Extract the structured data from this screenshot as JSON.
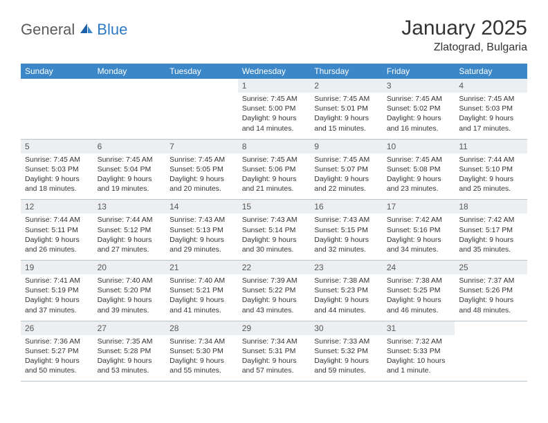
{
  "logo": {
    "text1": "General",
    "text2": "Blue"
  },
  "title": "January 2025",
  "location": "Zlatograd, Bulgaria",
  "colors": {
    "header_bg": "#3b87c8",
    "header_fg": "#ffffff",
    "daynum_bg": "#eceff1",
    "border": "#b8c4cc",
    "text": "#333333",
    "logo_gray": "#5a5a5a",
    "logo_blue": "#2d78c4"
  },
  "weekdays": [
    "Sunday",
    "Monday",
    "Tuesday",
    "Wednesday",
    "Thursday",
    "Friday",
    "Saturday"
  ],
  "weeks": [
    {
      "nums": [
        "",
        "",
        "",
        "1",
        "2",
        "3",
        "4"
      ],
      "details": [
        "",
        "",
        "",
        "Sunrise: 7:45 AM\nSunset: 5:00 PM\nDaylight: 9 hours and 14 minutes.",
        "Sunrise: 7:45 AM\nSunset: 5:01 PM\nDaylight: 9 hours and 15 minutes.",
        "Sunrise: 7:45 AM\nSunset: 5:02 PM\nDaylight: 9 hours and 16 minutes.",
        "Sunrise: 7:45 AM\nSunset: 5:03 PM\nDaylight: 9 hours and 17 minutes."
      ]
    },
    {
      "nums": [
        "5",
        "6",
        "7",
        "8",
        "9",
        "10",
        "11"
      ],
      "details": [
        "Sunrise: 7:45 AM\nSunset: 5:03 PM\nDaylight: 9 hours and 18 minutes.",
        "Sunrise: 7:45 AM\nSunset: 5:04 PM\nDaylight: 9 hours and 19 minutes.",
        "Sunrise: 7:45 AM\nSunset: 5:05 PM\nDaylight: 9 hours and 20 minutes.",
        "Sunrise: 7:45 AM\nSunset: 5:06 PM\nDaylight: 9 hours and 21 minutes.",
        "Sunrise: 7:45 AM\nSunset: 5:07 PM\nDaylight: 9 hours and 22 minutes.",
        "Sunrise: 7:45 AM\nSunset: 5:08 PM\nDaylight: 9 hours and 23 minutes.",
        "Sunrise: 7:44 AM\nSunset: 5:10 PM\nDaylight: 9 hours and 25 minutes."
      ]
    },
    {
      "nums": [
        "12",
        "13",
        "14",
        "15",
        "16",
        "17",
        "18"
      ],
      "details": [
        "Sunrise: 7:44 AM\nSunset: 5:11 PM\nDaylight: 9 hours and 26 minutes.",
        "Sunrise: 7:44 AM\nSunset: 5:12 PM\nDaylight: 9 hours and 27 minutes.",
        "Sunrise: 7:43 AM\nSunset: 5:13 PM\nDaylight: 9 hours and 29 minutes.",
        "Sunrise: 7:43 AM\nSunset: 5:14 PM\nDaylight: 9 hours and 30 minutes.",
        "Sunrise: 7:43 AM\nSunset: 5:15 PM\nDaylight: 9 hours and 32 minutes.",
        "Sunrise: 7:42 AM\nSunset: 5:16 PM\nDaylight: 9 hours and 34 minutes.",
        "Sunrise: 7:42 AM\nSunset: 5:17 PM\nDaylight: 9 hours and 35 minutes."
      ]
    },
    {
      "nums": [
        "19",
        "20",
        "21",
        "22",
        "23",
        "24",
        "25"
      ],
      "details": [
        "Sunrise: 7:41 AM\nSunset: 5:19 PM\nDaylight: 9 hours and 37 minutes.",
        "Sunrise: 7:40 AM\nSunset: 5:20 PM\nDaylight: 9 hours and 39 minutes.",
        "Sunrise: 7:40 AM\nSunset: 5:21 PM\nDaylight: 9 hours and 41 minutes.",
        "Sunrise: 7:39 AM\nSunset: 5:22 PM\nDaylight: 9 hours and 43 minutes.",
        "Sunrise: 7:38 AM\nSunset: 5:23 PM\nDaylight: 9 hours and 44 minutes.",
        "Sunrise: 7:38 AM\nSunset: 5:25 PM\nDaylight: 9 hours and 46 minutes.",
        "Sunrise: 7:37 AM\nSunset: 5:26 PM\nDaylight: 9 hours and 48 minutes."
      ]
    },
    {
      "nums": [
        "26",
        "27",
        "28",
        "29",
        "30",
        "31",
        ""
      ],
      "details": [
        "Sunrise: 7:36 AM\nSunset: 5:27 PM\nDaylight: 9 hours and 50 minutes.",
        "Sunrise: 7:35 AM\nSunset: 5:28 PM\nDaylight: 9 hours and 53 minutes.",
        "Sunrise: 7:34 AM\nSunset: 5:30 PM\nDaylight: 9 hours and 55 minutes.",
        "Sunrise: 7:34 AM\nSunset: 5:31 PM\nDaylight: 9 hours and 57 minutes.",
        "Sunrise: 7:33 AM\nSunset: 5:32 PM\nDaylight: 9 hours and 59 minutes.",
        "Sunrise: 7:32 AM\nSunset: 5:33 PM\nDaylight: 10 hours and 1 minute.",
        ""
      ]
    }
  ]
}
